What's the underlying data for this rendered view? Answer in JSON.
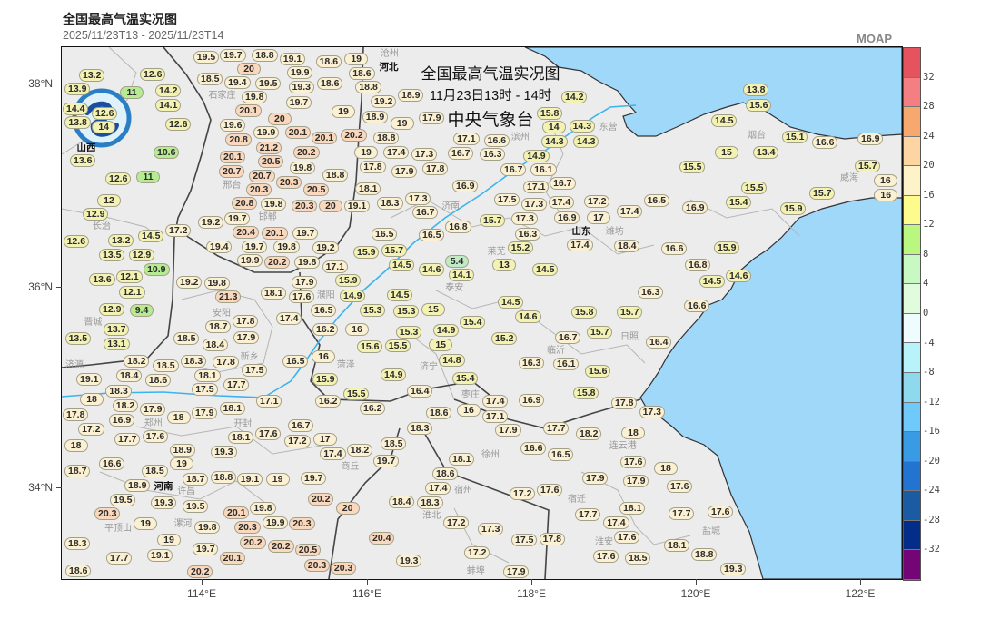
{
  "header": {
    "title": "全国最高气温实况图",
    "time_range": "2025/11/23T13  -  2025/11/23T14",
    "brand": "MOAP"
  },
  "overlay": {
    "line1": "全国最高气温实况图",
    "line2": "11月23日13时 - 14时",
    "line3": "中央气象台"
  },
  "axes": {
    "lat_ticks": [
      "38°N",
      "36°N",
      "34°N"
    ],
    "lon_ticks": [
      "114°E",
      "116°E",
      "118°E",
      "120°E",
      "122°E"
    ]
  },
  "colorbar": {
    "labels": [
      "32",
      "28",
      "24",
      "20",
      "16",
      "12",
      "8",
      "4",
      "0",
      "-4",
      "-8",
      "-12",
      "-16",
      "-20",
      "-24",
      "-28",
      "-32"
    ],
    "colors": [
      "#e5535f",
      "#f47f83",
      "#f7a86f",
      "#fcd5a2",
      "#fef2c8",
      "#fdfb8c",
      "#b9f781",
      "#c9f9c2",
      "#e1fbdd",
      "#effcff",
      "#b8f3fb",
      "#8fd9ef",
      "#70c9fb",
      "#3a9be5",
      "#2373d0",
      "#1b5ba4",
      "#032d88",
      "#740576"
    ]
  },
  "map": {
    "sea_color": "#a0d8fa",
    "land_color": "#ececec",
    "river_color": "#3ab4ee",
    "provinces": [
      "河北",
      "山西",
      "山东",
      "河南"
    ],
    "cities": [
      "沧州",
      "滨州",
      "东营",
      "烟台",
      "威海",
      "潍坊",
      "泰安",
      "莱芜",
      "济南",
      "济宁",
      "日照",
      "临沂",
      "枣庄",
      "菏泽",
      "徐州",
      "连云港",
      "宿迁",
      "淮安",
      "盐城",
      "宿州",
      "淮北",
      "蚌埠",
      "商丘",
      "开封",
      "郑州",
      "许昌",
      "漯河",
      "平顶山",
      "新乡",
      "邢台",
      "邯郸",
      "长治",
      "晋城",
      "济源",
      "安阳",
      "濮阳",
      "石家庄"
    ],
    "stations": [
      "13.2",
      "13.9",
      "11",
      "14.2",
      "14.1",
      "12.6",
      "14.4",
      "12.6",
      "13.8",
      "14",
      "12.6",
      "13.6",
      "10.6",
      "12.6",
      "11",
      "12",
      "12.9",
      "19.7",
      "18.8",
      "19.5",
      "20",
      "19.1",
      "19.9",
      "18.6",
      "19",
      "18.5",
      "19.4",
      "19.5",
      "19.3",
      "18.6",
      "19.7",
      "19.8",
      "20.1",
      "20",
      "19",
      "19.6",
      "19.9",
      "20.1",
      "21.2",
      "20.8",
      "20.5",
      "20.1",
      "20.2",
      "20.2",
      "20.1",
      "19.8",
      "20.7",
      "20.7",
      "20.3",
      "20.5",
      "18.8",
      "20.3",
      "19.8",
      "20.8",
      "20.3",
      "20",
      "19.1",
      "19.7",
      "19.2",
      "20.4",
      "18.6",
      "18.8",
      "19.2",
      "18.9",
      "18.9",
      "19",
      "18.8",
      "17.9",
      "17.1",
      "16.6",
      "15.8",
      "14.2",
      "14",
      "14.3",
      "14.3",
      "14.3",
      "16.3",
      "19",
      "17.4",
      "17.3",
      "16.7",
      "14.9",
      "17.8",
      "17.8",
      "17.9",
      "16.7",
      "16.1",
      "16.7",
      "18.1",
      "16.9",
      "17.1",
      "18.3",
      "17.3",
      "17.5",
      "17.3",
      "17.4",
      "17.2",
      "17.4",
      "16.7",
      "17.3",
      "15.7",
      "16.3",
      "16.9",
      "17",
      "13.8",
      "15.6",
      "14.5",
      "15.1",
      "16.6",
      "16.9",
      "15",
      "13.4",
      "15.5",
      "15.7",
      "16",
      "15.5",
      "15.4",
      "15.7",
      "16",
      "16.5",
      "16.9",
      "15.9",
      "12.6",
      "13.2",
      "14.5",
      "17.2",
      "13.5",
      "12.9",
      "10.9",
      "12.1",
      "13.6",
      "12.1",
      "12.9",
      "9.4",
      "13.7",
      "13.1",
      "13.5",
      "20.1",
      "19.7",
      "19.8",
      "19.7",
      "19.4",
      "19.2",
      "19.9",
      "20.2",
      "19.8",
      "17.1",
      "15.9",
      "19.2",
      "19.8",
      "17.9",
      "14.9",
      "21.3",
      "18.1",
      "17.6",
      "16.5",
      "17.4",
      "18.7",
      "17.8",
      "17.9",
      "16.2",
      "16",
      "18.5",
      "18.4",
      "16.5",
      "16",
      "15.9",
      "18.2",
      "18.5",
      "18.3",
      "18.1",
      "17.8",
      "17.5",
      "18.4",
      "18.6",
      "19.1",
      "18.3",
      "17.5",
      "17.7",
      "18",
      "18.2",
      "17.1",
      "16.2",
      "15.5",
      "16.5",
      "16.5",
      "16.8",
      "15.2",
      "17.4",
      "18.4",
      "15.9",
      "15.7",
      "14.5",
      "5.4",
      "14.6",
      "14.1",
      "13",
      "14.5",
      "14.5",
      "15.3",
      "15.3",
      "15",
      "14.5",
      "14.6",
      "15.8",
      "15.7",
      "15.4",
      "14.9",
      "15",
      "15.2",
      "16.7",
      "15.7",
      "15.6",
      "15.5",
      "15.3",
      "14.8",
      "16.3",
      "16.1",
      "15.6",
      "14.9",
      "15.4",
      "16.4",
      "15.8",
      "17.4",
      "16.9",
      "17.8",
      "16.6",
      "15.9",
      "16.8",
      "14.6",
      "14.5",
      "16.3",
      "16.6",
      "16.4",
      "17.8",
      "16.9",
      "17.2",
      "17.9",
      "18",
      "17.9",
      "18.1",
      "17.7",
      "17.6",
      "18",
      "18.1",
      "17.6",
      "16.7",
      "17.2",
      "17",
      "17.4",
      "18.2",
      "19.3",
      "18.9",
      "19",
      "16.6",
      "18.5",
      "18.7",
      "18.9",
      "18.7",
      "18.8",
      "19.1",
      "19",
      "19.7",
      "19.5",
      "19.3",
      "20.3",
      "19.5",
      "20.2",
      "20",
      "20.1",
      "19.8",
      "19.9",
      "20.3",
      "20.3",
      "19",
      "19.8",
      "20.2",
      "18.3",
      "19",
      "20.2",
      "20.5",
      "20.3",
      "19.7",
      "17.7",
      "19.1",
      "20.1",
      "18.6",
      "20.2",
      "20.3",
      "16.2",
      "18.6",
      "16",
      "17.1",
      "18.3",
      "17.9",
      "17.7",
      "18.2",
      "18",
      "18.5",
      "19.7",
      "16.6",
      "16.5",
      "18.1",
      "18.6",
      "17.6",
      "17.4",
      "18.3",
      "18.4",
      "17.2",
      "17.6",
      "17.9",
      "17.9",
      "20.4",
      "17.2",
      "17.3",
      "17.5",
      "17.8",
      "17.7",
      "17.4",
      "18.1",
      "17.6",
      "17.6",
      "18.5",
      "17.2",
      "19.3",
      "17.9",
      "17.3",
      "18",
      "17.6",
      "17.7",
      "17.6",
      "18.1",
      "18.8",
      "19.3"
    ]
  }
}
